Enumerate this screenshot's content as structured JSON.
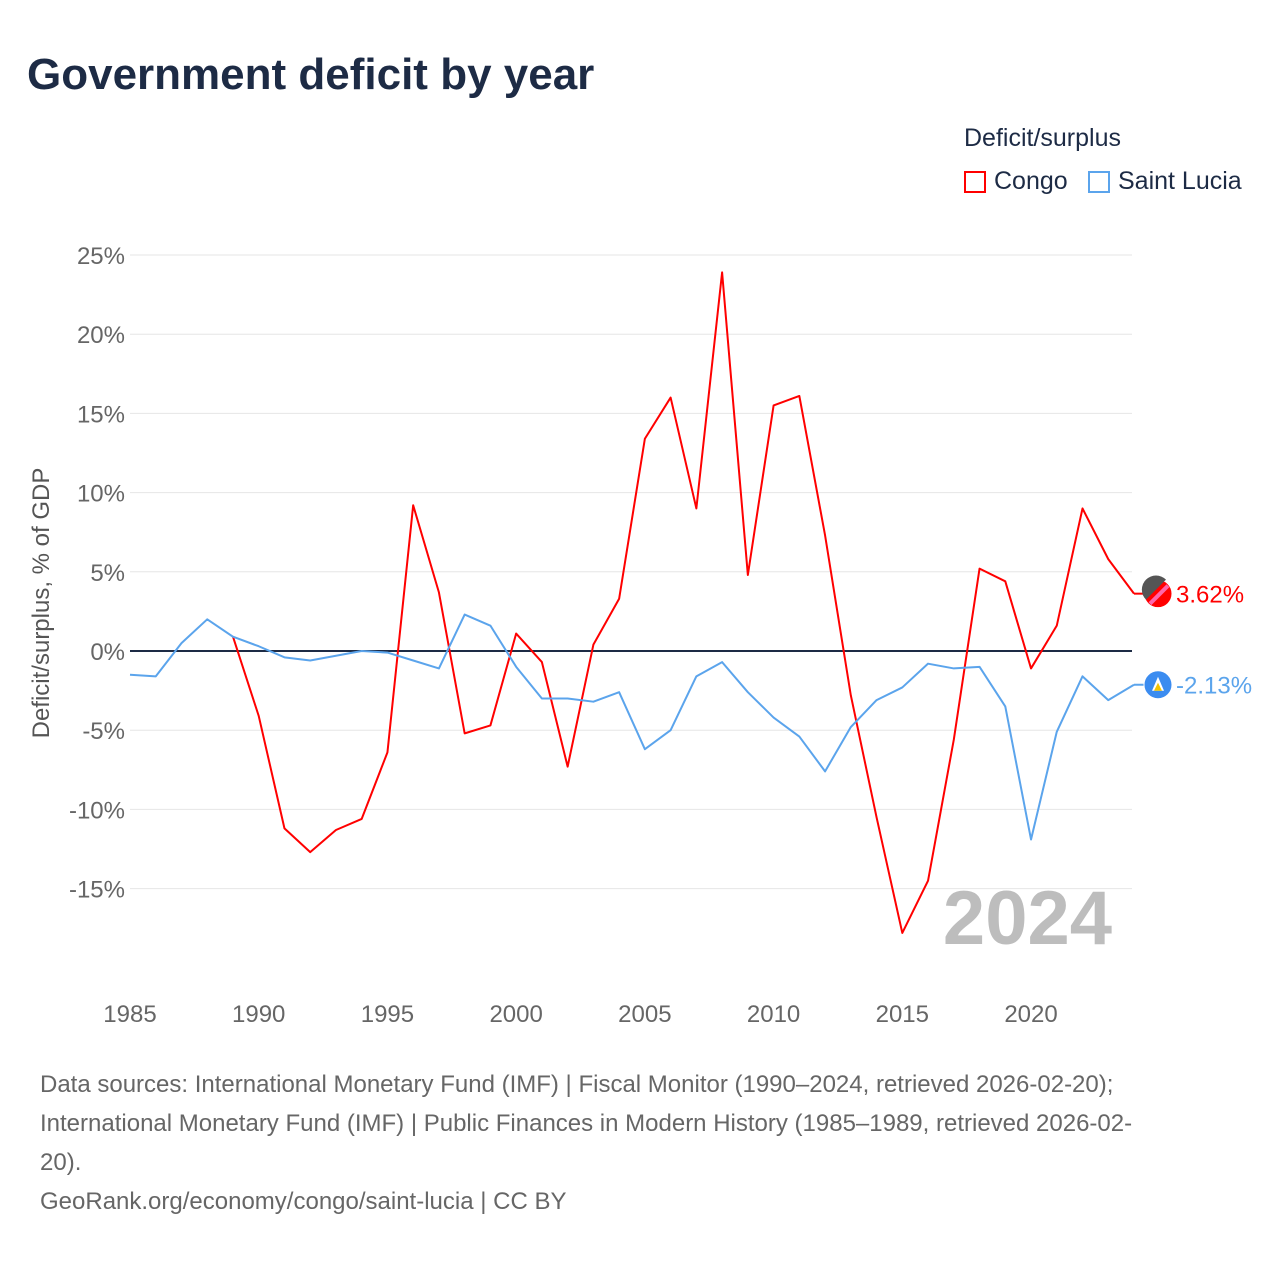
{
  "title": "Government deficit by year",
  "legend": {
    "title": "Deficit/surplus",
    "items": [
      "Congo",
      "Saint Lucia"
    ]
  },
  "year_watermark": "2024",
  "sources": [
    "Data sources: International Monetary Fund (IMF) | Fiscal Monitor (1990–2024, retrieved 2026-02-20);",
    "International Monetary Fund (IMF) | Public Finances in Modern History (1985–1989, retrieved 2026-02-",
    "20).",
    "GeoRank.org/economy/congo/saint-lucia | CC BY"
  ],
  "chart_data": {
    "type": "line",
    "title": "Government deficit by year",
    "xlabel": "",
    "ylabel": "Deficit/surplus, % of GDP",
    "xlim": [
      1985,
      2024
    ],
    "ylim": [
      -20,
      25
    ],
    "xticks": [
      1985,
      1990,
      1995,
      2000,
      2005,
      2010,
      2015,
      2020
    ],
    "yticks": [
      25,
      20,
      15,
      10,
      5,
      0,
      -5,
      -10,
      -15
    ],
    "ytick_labels": [
      "25%",
      "20%",
      "15%",
      "10%",
      "5%",
      "0%",
      "-5%",
      "-10%",
      "-15%"
    ],
    "grid": true,
    "legend_position": "top-right",
    "series": [
      {
        "name": "Congo",
        "color": "#ff0000",
        "end_label": "3.62%",
        "x": [
          1989,
          1990,
          1991,
          1992,
          1993,
          1994,
          1995,
          1996,
          1997,
          1998,
          1999,
          2000,
          2001,
          2002,
          2003,
          2004,
          2005,
          2006,
          2007,
          2008,
          2009,
          2010,
          2011,
          2012,
          2013,
          2014,
          2015,
          2016,
          2017,
          2018,
          2019,
          2020,
          2021,
          2022,
          2023,
          2024
        ],
        "values": [
          0.9,
          -4.1,
          -11.2,
          -12.7,
          -11.3,
          -10.6,
          -6.4,
          9.2,
          3.7,
          -5.2,
          -4.7,
          1.1,
          -0.7,
          -7.3,
          0.4,
          3.3,
          13.4,
          16.0,
          9.0,
          23.9,
          4.8,
          15.5,
          16.1,
          7.3,
          -2.8,
          -10.5,
          -17.8,
          -14.5,
          -5.6,
          5.2,
          4.4,
          -1.1,
          1.6,
          9.0,
          5.8,
          3.62
        ]
      },
      {
        "name": "Saint Lucia",
        "color": "#5ba4ec",
        "end_label": "-2.13%",
        "x": [
          1985,
          1986,
          1987,
          1988,
          1989,
          1990,
          1991,
          1992,
          1993,
          1994,
          1995,
          1996,
          1997,
          1998,
          1999,
          2000,
          2001,
          2002,
          2003,
          2004,
          2005,
          2006,
          2007,
          2008,
          2009,
          2010,
          2011,
          2012,
          2013,
          2014,
          2015,
          2016,
          2017,
          2018,
          2019,
          2020,
          2021,
          2022,
          2023,
          2024
        ],
        "values": [
          -1.5,
          -1.6,
          0.5,
          2.0,
          0.9,
          0.3,
          -0.4,
          -0.6,
          -0.3,
          0.0,
          -0.1,
          -0.6,
          -1.1,
          2.3,
          1.6,
          -1.0,
          -3.0,
          -3.0,
          -3.2,
          -2.6,
          -6.2,
          -5.0,
          -1.6,
          -0.7,
          -2.6,
          -4.2,
          -5.4,
          -7.6,
          -4.8,
          -3.1,
          -2.3,
          -0.8,
          -1.1,
          -1.0,
          -3.5,
          -11.9,
          -5.1,
          -1.6,
          -3.1,
          -2.13
        ]
      }
    ]
  }
}
